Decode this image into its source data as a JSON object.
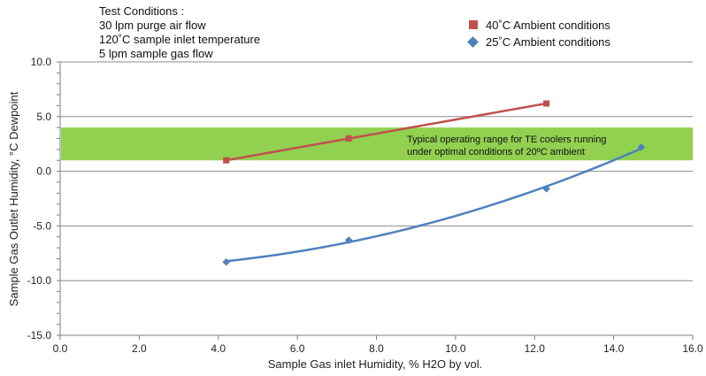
{
  "test_conditions": {
    "title": "Test Conditions :",
    "lines": [
      "30 lpm purge air flow",
      "120˚C sample inlet temperature",
      "5 lpm sample gas flow"
    ]
  },
  "chart_data": {
    "type": "line",
    "xlabel": "Sample Gas inlet Humidity, % H2O by vol.",
    "ylabel": "Sample Gas Outlet Humidity, °C Dewpoint",
    "xlim": [
      0,
      16
    ],
    "ylim": [
      -15,
      10
    ],
    "x_ticks": [
      "0.0",
      "2.0",
      "4.0",
      "6.0",
      "8.0",
      "10.0",
      "12.0",
      "14.0",
      "16.0"
    ],
    "y_ticks": [
      "10.0",
      "5.0",
      "0.0",
      "-5.0",
      "-10.0",
      "-15.0"
    ],
    "grid": "horizontal",
    "legend_position": "top-right",
    "band": {
      "y_range": [
        1,
        4
      ],
      "color": "#92d050",
      "label_lines": [
        "Typical operating range for TE coolers running",
        "under optimal conditions of 20ºC ambient"
      ]
    },
    "series": [
      {
        "name": "40˚C Ambient conditions",
        "marker": "square",
        "color": "#c0504d",
        "fit": "linear",
        "x": [
          4.2,
          7.3,
          12.3
        ],
        "y": [
          1.0,
          3.0,
          6.2
        ]
      },
      {
        "name": "25˚C Ambient conditions",
        "marker": "diamond",
        "color": "#4f81bd",
        "fit": "quadratic",
        "x": [
          4.2,
          7.3,
          12.3,
          14.7
        ],
        "y": [
          -8.3,
          -6.3,
          -1.6,
          2.2
        ]
      }
    ]
  }
}
